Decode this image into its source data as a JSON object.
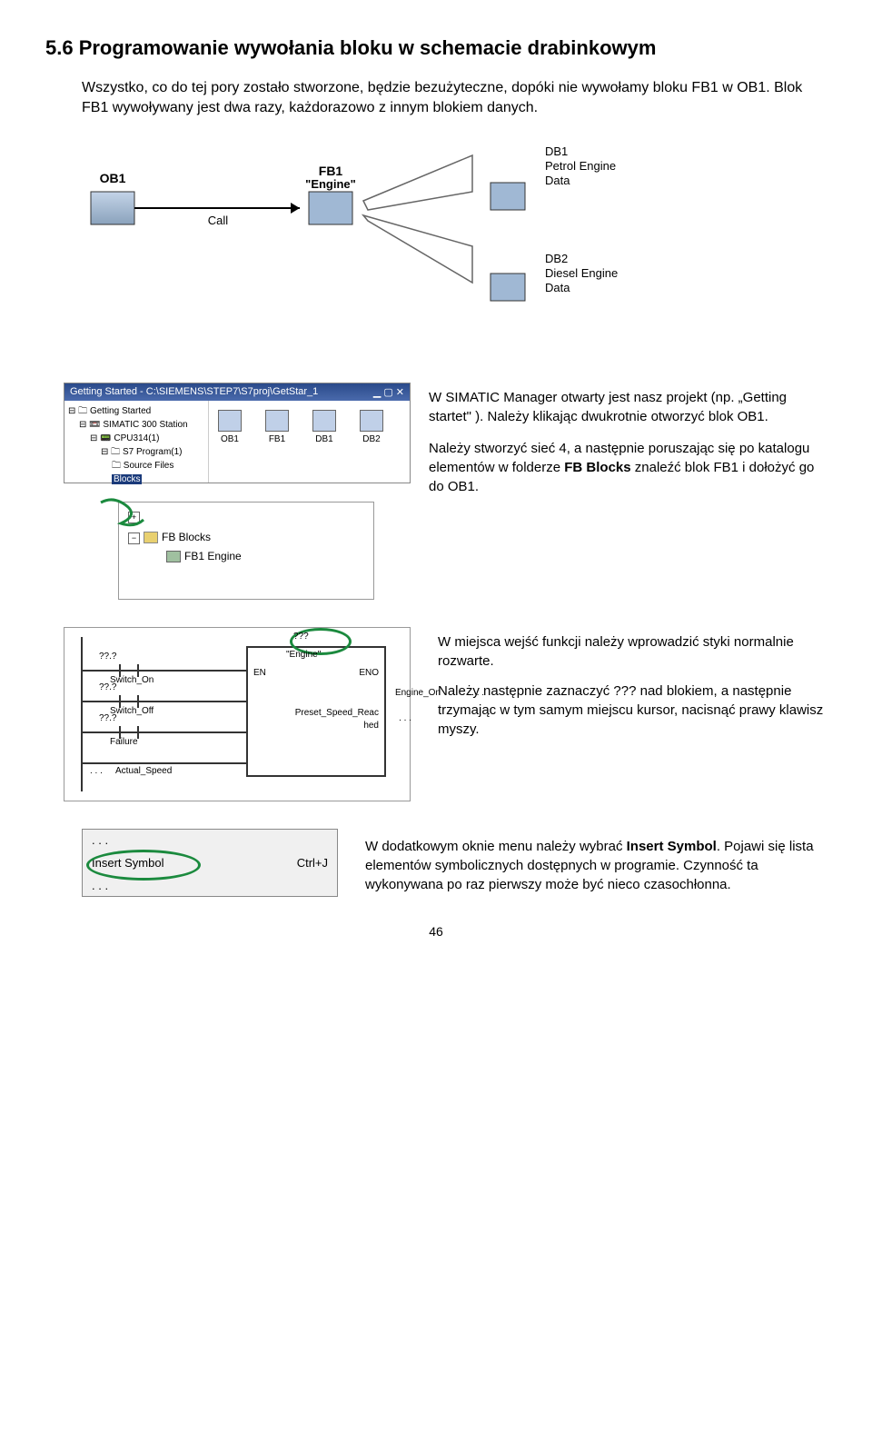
{
  "heading": "5.6  Programowanie wywołania bloku w schemacie drabinkowym",
  "intro": "Wszystko, co do tej pory zostało stworzone, będzie bezużyteczne, dopóki nie wywołamy bloku FB1 w OB1. Blok FB1 wywoływany jest dwa razy, każdorazowo z innym blokiem danych.",
  "diagram1": {
    "ob1_label": "OB1",
    "call_label": "Call",
    "fb1_label": "FB1",
    "fb1_sub": "\"Engine\"",
    "db1_lines": "DB1\nPetrol Engine\nData",
    "db2_lines": "DB2\nDiesel Engine\nData"
  },
  "manager": {
    "title": "Getting Started - C:\\SIEMENS\\STEP7\\S7proj\\GetStar_1",
    "tree_root": "Getting Started",
    "tree_station": "SIMATIC 300 Station",
    "tree_cpu": "CPU314(1)",
    "tree_prog": "S7 Program(1)",
    "tree_src": "Source Files",
    "tree_blocks": "Blocks",
    "list_items": [
      "OB1",
      "FB1",
      "DB1",
      "DB2"
    ]
  },
  "text_manager": "W SIMATIC Manager otwarty jest nasz projekt (np. „Getting startet\" ). Należy klikając dwukrotnie otworzyć blok OB1.",
  "text_fbblocks": "Należy stworzyć sieć 4, a następnie poruszając się po katalogu elementów w folderze FB Blocks znaleźć blok FB1 i dołożyć go do OB1.",
  "fb_tree": {
    "folder_label": "FB Blocks",
    "item_label": "FB1  Engine"
  },
  "ladder": {
    "block_title": "???",
    "block_sub": "\"Engine\"",
    "en": "EN",
    "eno": "ENO",
    "engine_on": "Engine_On",
    "preset": "Preset_Speed_Reac",
    "preset2": "hed",
    "q1": "??.?",
    "switch_on": "Switch_On",
    "q2": "??.?",
    "switch_off": "Switch_Off",
    "q3": "??.?",
    "failure": "Failure",
    "actual": "Actual_Speed",
    "dots": ". . ."
  },
  "text_ladder": "W miejsca wejść funkcji należy wprowadzić styki normalnie rozwarte.",
  "text_ladder2": "Należy następnie zaznaczyć ??? nad blokiem, a następnie trzymając w tym samym miejscu kursor, nacisnąć prawy klawisz myszy.",
  "menu": {
    "dots": ". . .",
    "insert": "Insert Symbol",
    "shortcut": "Ctrl+J"
  },
  "text_menu": "W dodatkowym oknie menu należy wybrać Insert Symbol. Pojawi się lista elementów symbolicznych dostępnych w programie. Czynność ta wykonywana po raz pierwszy może być nieco czasochłonna.",
  "page_num": "46",
  "bold_fb_blocks": "FB Blocks",
  "bold_insert": "Insert Symbol",
  "colors": {
    "heading": "#000000",
    "green": "#1b8a3e",
    "win_title": "#2a4a8a"
  }
}
